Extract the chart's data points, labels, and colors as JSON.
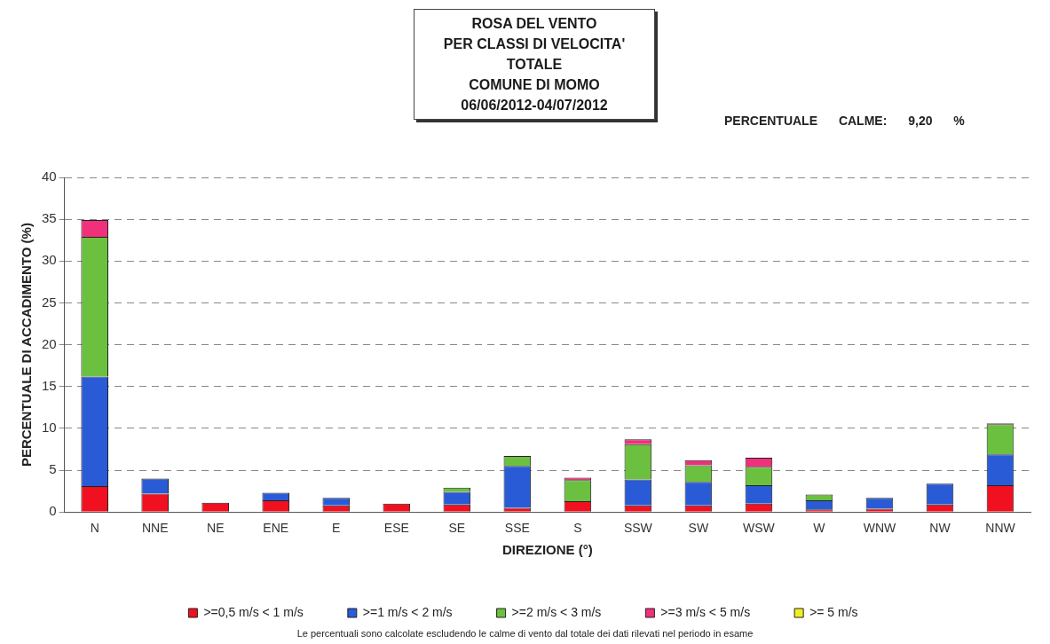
{
  "chart_data": {
    "type": "bar",
    "title": "ROSA DEL VENTO\nPER CLASSI DI VELOCITA'\nTOTALE\nCOMUNE DI MOMO\n06/06/2012-04/07/2012",
    "xlabel": "DIREZIONE (°)",
    "ylabel": "PERCENTUALE DI ACCADIMENTO (%)",
    "annotations": [
      "PERCENTUALE CALME: 9,20 %",
      "Le percentuali sono calcolate escludendo le calme di vento dal totale dei dati rilevati nel periodo in esame"
    ],
    "categories": [
      "N",
      "NNE",
      "NE",
      "ENE",
      "E",
      "ESE",
      "SE",
      "SSE",
      "S",
      "SSW",
      "SW",
      "WSW",
      "W",
      "WNW",
      "NW",
      "NNW"
    ],
    "stacked": true,
    "series": [
      {
        "name": ">=0,5 m/s < 1 m/s",
        "color": "#f01020",
        "values": [
          3.1,
          2.2,
          1.1,
          1.4,
          0.8,
          1.0,
          0.9,
          0.5,
          1.3,
          0.8,
          0.8,
          1.0,
          0.3,
          0.4,
          0.9,
          3.2
        ]
      },
      {
        "name": ">=1 m/s < 2 m/s",
        "color": "#2a5bd7",
        "values": [
          13.1,
          1.8,
          0,
          0.9,
          0.9,
          0,
          1.5,
          5.0,
          0,
          3.1,
          2.8,
          2.2,
          1.1,
          1.3,
          2.5,
          3.7
        ]
      },
      {
        "name": ">=2 m/s < 3 m/s",
        "color": "#6cc040",
        "values": [
          16.7,
          0,
          0,
          0,
          0,
          0,
          0.5,
          1.2,
          2.5,
          4.2,
          2.0,
          2.2,
          0.7,
          0,
          0,
          3.6
        ]
      },
      {
        "name": ">=3 m/s < 5 m/s",
        "color": "#f0307a",
        "values": [
          2.0,
          0,
          0,
          0,
          0,
          0,
          0,
          0,
          0.3,
          0.6,
          0.6,
          1.1,
          0,
          0,
          0,
          0.1
        ]
      },
      {
        "name": ">= 5 m/s",
        "color": "#f0f020",
        "values": [
          0,
          0,
          0,
          0,
          0,
          0,
          0,
          0,
          0,
          0,
          0,
          0,
          0,
          0,
          0,
          0
        ]
      }
    ],
    "ylim": [
      0,
      40
    ],
    "yticks": [
      0,
      5,
      10,
      15,
      20,
      25,
      30,
      35,
      40
    ],
    "grid": "y",
    "legend": "bottom"
  }
}
